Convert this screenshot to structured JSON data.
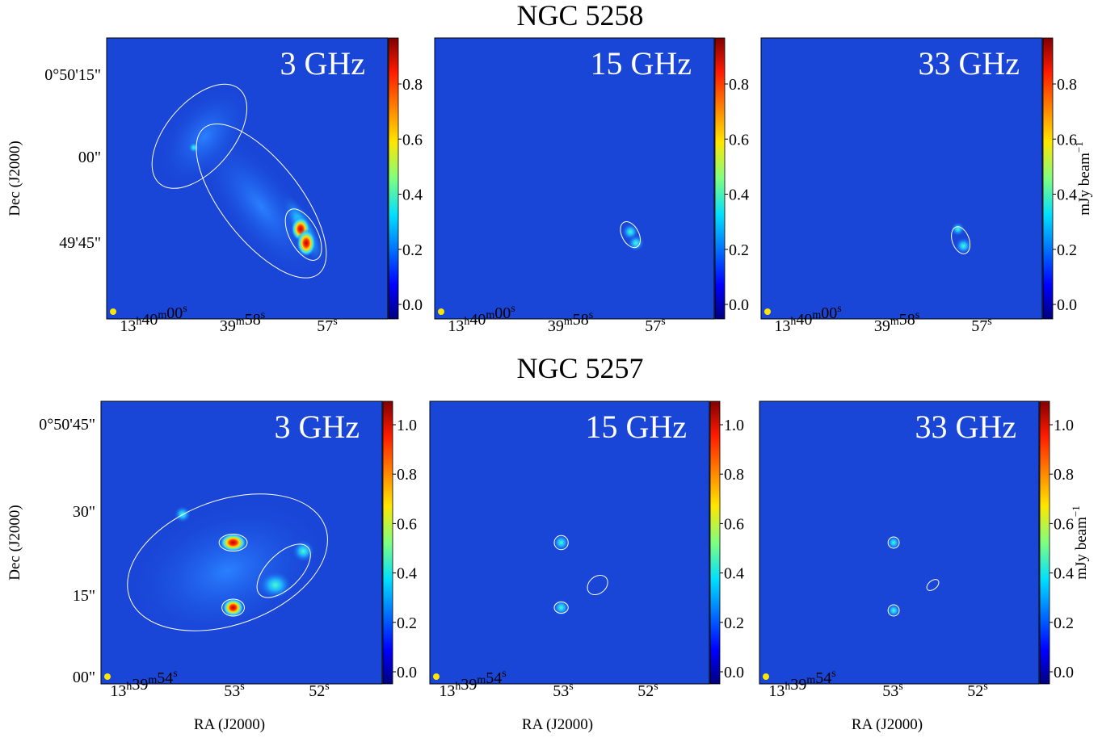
{
  "y_label": "Dec (J2000)",
  "x_label": "RA (J2000)",
  "cbar_label": [
    "mJy beam",
    "−1"
  ],
  "rows": [
    {
      "title": "NGC 5258",
      "yticks": [
        "0°50'15\"",
        "00\"",
        "49'45\""
      ],
      "xticks": [
        [
          [
            "13",
            "h"
          ],
          [
            "40",
            "m"
          ],
          [
            "00",
            "s"
          ]
        ],
        [
          [
            "39",
            "m"
          ],
          [
            "58",
            "s"
          ]
        ],
        [
          [
            "57",
            "s"
          ]
        ]
      ],
      "cbticks": [
        "0.0",
        "0.2",
        "0.4",
        "0.6",
        "0.8"
      ],
      "panels": [
        {
          "label": "3 GHz"
        },
        {
          "label": "15 GHz"
        },
        {
          "label": "33 GHz"
        }
      ]
    },
    {
      "title": "NGC 5257",
      "yticks": [
        "0°50'45\"",
        "30\"",
        "15\"",
        "00\""
      ],
      "xticks": [
        [
          [
            "13",
            "h"
          ],
          [
            "39",
            "m"
          ],
          [
            "54",
            "s"
          ]
        ],
        [
          [
            "53",
            "s"
          ]
        ],
        [
          [
            "52",
            "s"
          ]
        ]
      ],
      "cbticks": [
        "0.0",
        "0.2",
        "0.4",
        "0.6",
        "0.8",
        "1.0"
      ],
      "panels": [
        {
          "label": "3 GHz"
        },
        {
          "label": "15 GHz"
        },
        {
          "label": "33 GHz"
        }
      ]
    }
  ]
}
